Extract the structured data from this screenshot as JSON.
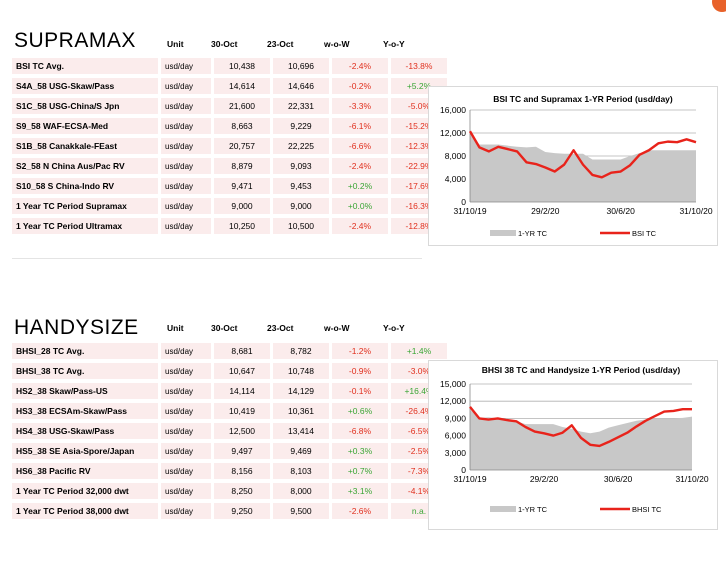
{
  "columns": [
    "Unit",
    "30-Oct",
    "23-Oct",
    "w-o-W",
    "Y-o-Y"
  ],
  "supramax": {
    "title": "SUPRAMAX",
    "rows": [
      {
        "name": "BSI TC Avg.",
        "unit": "usd/day",
        "v1": "10,438",
        "v2": "10,696",
        "wow": "-2.4%",
        "yoy": "-13.8%"
      },
      {
        "name": "S4A_58 USG-Skaw/Pass",
        "unit": "usd/day",
        "v1": "14,614",
        "v2": "14,646",
        "wow": "-0.2%",
        "yoy": "+5.2%"
      },
      {
        "name": "S1C_58 USG-China/S Jpn",
        "unit": "usd/day",
        "v1": "21,600",
        "v2": "22,331",
        "wow": "-3.3%",
        "yoy": "-5.0%"
      },
      {
        "name": "S9_58 WAF-ECSA-Med",
        "unit": "usd/day",
        "v1": "8,663",
        "v2": "9,229",
        "wow": "-6.1%",
        "yoy": "-15.2%"
      },
      {
        "name": "S1B_58 Canakkale-FEast",
        "unit": "usd/day",
        "v1": "20,757",
        "v2": "22,225",
        "wow": "-6.6%",
        "yoy": "-12.3%"
      },
      {
        "name": "S2_58 N China Aus/Pac RV",
        "unit": "usd/day",
        "v1": "8,879",
        "v2": "9,093",
        "wow": "-2.4%",
        "yoy": "-22.9%"
      },
      {
        "name": "S10_58 S China-Indo RV",
        "unit": "usd/day",
        "v1": "9,471",
        "v2": "9,453",
        "wow": "+0.2%",
        "yoy": "-17.6%"
      },
      {
        "name": "1 Year TC Period Supramax",
        "unit": "usd/day",
        "v1": "9,000",
        "v2": "9,000",
        "wow": "+0.0%",
        "yoy": "-16.3%"
      },
      {
        "name": "1 Year TC Period Ultramax",
        "unit": "usd/day",
        "v1": "10,250",
        "v2": "10,500",
        "wow": "-2.4%",
        "yoy": "-12.8%"
      }
    ]
  },
  "handysize": {
    "title": "HANDYSIZE",
    "rows": [
      {
        "name": "BHSI_28 TC Avg.",
        "unit": "usd/day",
        "v1": "8,681",
        "v2": "8,782",
        "wow": "-1.2%",
        "yoy": "+1.4%"
      },
      {
        "name": "BHSI_38 TC Avg.",
        "unit": "usd/day",
        "v1": "10,647",
        "v2": "10,748",
        "wow": "-0.9%",
        "yoy": "-3.0%"
      },
      {
        "name": "HS2_38 Skaw/Pass-US",
        "unit": "usd/day",
        "v1": "14,114",
        "v2": "14,129",
        "wow": "-0.1%",
        "yoy": "+16.4%"
      },
      {
        "name": "HS3_38 ECSAm-Skaw/Pass",
        "unit": "usd/day",
        "v1": "10,419",
        "v2": "10,361",
        "wow": "+0.6%",
        "yoy": "-26.4%"
      },
      {
        "name": "HS4_38 USG-Skaw/Pass",
        "unit": "usd/day",
        "v1": "12,500",
        "v2": "13,414",
        "wow": "-6.8%",
        "yoy": "-6.5%"
      },
      {
        "name": "HS5_38 SE Asia-Spore/Japan",
        "unit": "usd/day",
        "v1": "9,497",
        "v2": "9,469",
        "wow": "+0.3%",
        "yoy": "-2.5%"
      },
      {
        "name": "HS6_38 Pacific RV",
        "unit": "usd/day",
        "v1": "8,156",
        "v2": "8,103",
        "wow": "+0.7%",
        "yoy": "-7.3%"
      },
      {
        "name": "1 Year TC Period 32,000 dwt",
        "unit": "usd/day",
        "v1": "8,250",
        "v2": "8,000",
        "wow": "+3.1%",
        "yoy": "-4.1%"
      },
      {
        "name": "1 Year TC Period 38,000 dwt",
        "unit": "usd/day",
        "v1": "9,250",
        "v2": "9,500",
        "wow": "-2.6%",
        "yoy": "n.a."
      }
    ]
  },
  "colors": {
    "line": "#e8231b",
    "area": "#c8c8c8",
    "neg": "#e0301e",
    "pos": "#3aa535",
    "row_bg": "#fbecec"
  },
  "chart_data": [
    {
      "type": "area",
      "title": "BSI TC and Supramax 1-YR Period (usd/day)",
      "ylim": [
        0,
        16000
      ],
      "yticks": [
        "0",
        "4,000",
        "8,000",
        "12,000",
        "16,000"
      ],
      "xticks": [
        "31/10/19",
        "29/2/20",
        "30/6/20",
        "31/10/20"
      ],
      "legend": [
        "1-YR TC",
        "BSI TC"
      ],
      "series": [
        {
          "name": "1-YR TC",
          "kind": "area",
          "values": [
            12000,
            10000,
            10000,
            10000,
            9800,
            9600,
            9500,
            9600,
            8700,
            8500,
            8400,
            8400,
            8400,
            7400,
            7400,
            7400,
            7400,
            8000,
            8500,
            9000,
            9000,
            9000,
            9000,
            9000,
            9000
          ]
        },
        {
          "name": "BSI TC",
          "kind": "line",
          "values": [
            12300,
            9500,
            8800,
            9600,
            9200,
            8800,
            6900,
            6600,
            6000,
            5300,
            6500,
            9000,
            6500,
            4700,
            4300,
            5100,
            5300,
            6400,
            8200,
            9000,
            10200,
            10500,
            10400,
            10900,
            10400
          ]
        }
      ]
    },
    {
      "type": "area",
      "title": "BHSI 38 TC and Handysize 1-YR Period (usd/day)",
      "ylim": [
        0,
        15000
      ],
      "yticks": [
        "0",
        "3,000",
        "6,000",
        "9,000",
        "12,000",
        "15,000"
      ],
      "xticks": [
        "31/10/19",
        "29/2/20",
        "30/6/20",
        "31/10/20"
      ],
      "legend": [
        "1-YR TC",
        "BHSI TC"
      ],
      "series": [
        {
          "name": "1-YR TC",
          "kind": "area",
          "values": [
            10500,
            9100,
            9200,
            9000,
            8700,
            8500,
            8000,
            8000,
            8000,
            8000,
            7500,
            7200,
            6700,
            6400,
            6700,
            7400,
            7800,
            8200,
            8600,
            8800,
            9000,
            9000,
            9000,
            9100,
            9300
          ]
        },
        {
          "name": "BHSI TC",
          "kind": "line",
          "values": [
            11000,
            9000,
            8800,
            9000,
            8700,
            8500,
            7500,
            6700,
            6400,
            6000,
            6500,
            7800,
            5600,
            4400,
            4200,
            4900,
            5700,
            6500,
            7600,
            8600,
            9400,
            10200,
            10300,
            10600,
            10600
          ]
        }
      ]
    }
  ]
}
